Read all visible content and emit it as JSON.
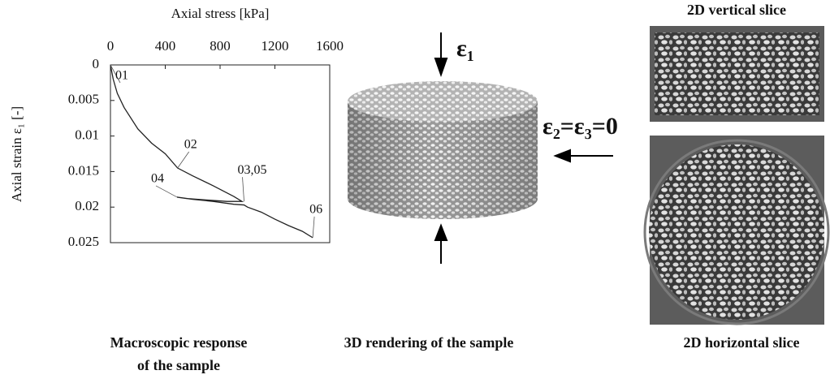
{
  "chart_data": {
    "type": "line",
    "x_label": "Axial stress [kPa]",
    "y_label": "Axial strain ε₁ [-]",
    "x": [
      0,
      20,
      50,
      100,
      200,
      300,
      400,
      490,
      600,
      750,
      900,
      960,
      850,
      700,
      560,
      486,
      600,
      750,
      900,
      975,
      1000,
      1100,
      1200,
      1300,
      1400,
      1476
    ],
    "series": [
      {
        "name": "response",
        "color": "#222222",
        "values": [
          0,
          0.002,
          0.004,
          0.006,
          0.009,
          0.011,
          0.0125,
          0.0145,
          0.0156,
          0.017,
          0.0185,
          0.0192,
          0.0192,
          0.019,
          0.0188,
          0.0186,
          0.0189,
          0.0192,
          0.0196,
          0.0197,
          0.02,
          0.0207,
          0.0217,
          0.0226,
          0.0234,
          0.0243
        ]
      }
    ],
    "xlim": [
      0,
      1600
    ],
    "xticks": [
      0,
      400,
      800,
      1200,
      1600
    ],
    "ylim": [
      0,
      0.025
    ],
    "yticks": [
      0,
      0.005,
      0.01,
      0.015,
      0.02,
      0.025
    ],
    "y_inverted": true,
    "x_axis_top": true,
    "annotations": [
      {
        "text": "01",
        "x": 0,
        "y": 0
      },
      {
        "text": "02",
        "x": 490,
        "y": 0.0145
      },
      {
        "text": "03,05",
        "x": 975,
        "y": 0.0192
      },
      {
        "text": "04",
        "x": 486,
        "y": 0.0186
      },
      {
        "text": "06",
        "x": 1476,
        "y": 0.0243
      }
    ],
    "caption": [
      "Macroscopic response",
      "of the sample"
    ]
  },
  "rendering": {
    "caption": "3D rendering of the sample",
    "strain_axial": "ε₁",
    "strain_lateral": "ε₂=ε₃=0"
  },
  "slices": {
    "vertical_title": "2D vertical slice",
    "horizontal_caption": "2D horizontal slice"
  }
}
